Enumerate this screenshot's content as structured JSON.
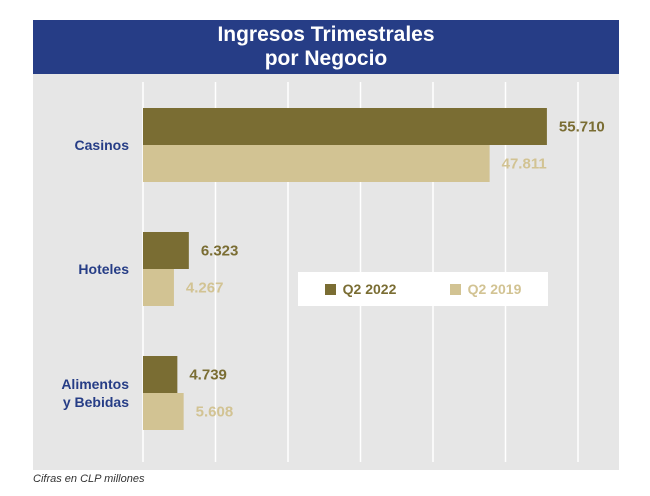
{
  "chart_data": {
    "type": "bar",
    "orientation": "horizontal",
    "title": "Ingresos Trimestrales por Negocio",
    "title_lines": [
      "Ingresos Trimestrales",
      "por Negocio"
    ],
    "categories": [
      "Casinos",
      "Hoteles",
      "Alimentos y Bebidas"
    ],
    "category_lines": [
      [
        "Casinos"
      ],
      [
        "Hoteles"
      ],
      [
        "Alimentos",
        "y Bebidas"
      ]
    ],
    "series": [
      {
        "name": "Q2 2022",
        "values": [
          55710,
          6323,
          4739
        ],
        "labels": [
          "55.710",
          "6.323",
          "4.739"
        ],
        "color": "#7a6d33"
      },
      {
        "name": "Q2 2019",
        "values": [
          47811,
          4267,
          5608
        ],
        "labels": [
          "47.811",
          "4.267",
          "5.608"
        ],
        "color": "#d2c393"
      }
    ],
    "xlim": [
      0,
      60000
    ],
    "grid": true,
    "legend_position": "center-right",
    "footnote": "Cifras en CLP millones",
    "colors": {
      "header": "#263d86",
      "category_label": "#263d86",
      "plot_bg": "#e6e6e6",
      "grid": "#ffffff"
    }
  }
}
